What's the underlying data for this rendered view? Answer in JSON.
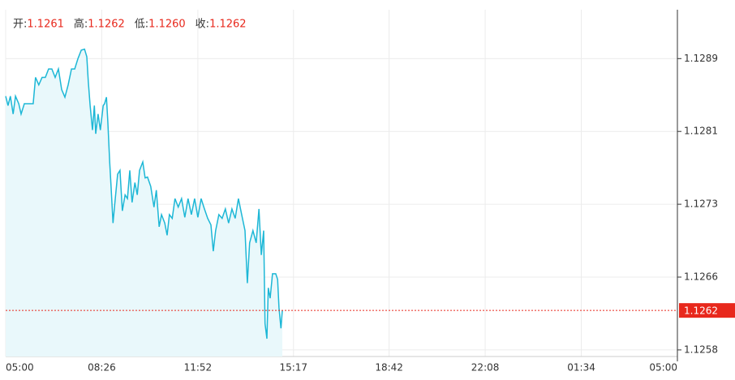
{
  "chart_data": {
    "type": "line",
    "header": [
      {
        "name": "开:",
        "value": 1.1261,
        "value_label": "1.1261"
      },
      {
        "name": "高:",
        "value": 1.1262,
        "value_label": "1.1262"
      },
      {
        "name": "低:",
        "value": 1.126,
        "value_label": "1.1260"
      },
      {
        "name": "收:",
        "value": 1.1262,
        "value_label": "1.1262"
      }
    ],
    "x": [
      0,
      5,
      10,
      16,
      21,
      28,
      33,
      40,
      50,
      59,
      64,
      71,
      78,
      85,
      92,
      99,
      106,
      113,
      120,
      127,
      134,
      141,
      148,
      155,
      162,
      169,
      174,
      177,
      181,
      186,
      190,
      193,
      198,
      203,
      209,
      212,
      216,
      219,
      223,
      226,
      230,
      235,
      240,
      245,
      250,
      256,
      261,
      266,
      271,
      277,
      282,
      287,
      294,
      299,
      304,
      311,
      318,
      323,
      329,
      334,
      341,
      346,
      351,
      357,
      363,
      370,
      377,
      384,
      391,
      398,
      405,
      412,
      419,
      426,
      433,
      440,
      445,
      450,
      457,
      464,
      471,
      478,
      485,
      492,
      499,
      506,
      513,
      518,
      523,
      530,
      537,
      543,
      548,
      553,
      556,
      560,
      563,
      567,
      572,
      579,
      583,
      586,
      590,
      593
    ],
    "series": [
      {
        "color": "#1db7d6",
        "fill": "#e9f8fb",
        "values": [
          1.12848,
          1.12838,
          1.12848,
          1.12829,
          1.12848,
          1.1284,
          1.12829,
          1.1284,
          1.1284,
          1.1284,
          1.12868,
          1.1286,
          1.12868,
          1.12868,
          1.12877,
          1.12877,
          1.12868,
          1.12877,
          1.12855,
          1.12847,
          1.1286,
          1.12877,
          1.12877,
          1.12888,
          1.12897,
          1.12898,
          1.1289,
          1.12864,
          1.12838,
          1.12812,
          1.12838,
          1.12808,
          1.12829,
          1.12812,
          1.12838,
          1.1284,
          1.12847,
          1.12821,
          1.12778,
          1.12752,
          1.12713,
          1.12739,
          1.12765,
          1.12769,
          1.12726,
          1.12743,
          1.12739,
          1.12769,
          1.12735,
          1.12756,
          1.12743,
          1.12769,
          1.12778,
          1.12761,
          1.12762,
          1.12752,
          1.1273,
          1.12748,
          1.12709,
          1.12722,
          1.12713,
          1.127,
          1.12722,
          1.12718,
          1.12739,
          1.1273,
          1.12739,
          1.12719,
          1.12739,
          1.12722,
          1.12739,
          1.12719,
          1.12739,
          1.12728,
          1.12718,
          1.12711,
          1.12683,
          1.12705,
          1.12722,
          1.12718,
          1.12728,
          1.12713,
          1.12728,
          1.12718,
          1.12739,
          1.12722,
          1.12705,
          1.12649,
          1.12692,
          1.12705,
          1.12692,
          1.12728,
          1.12679,
          1.12705,
          1.12606,
          1.1259,
          1.12644,
          1.12633,
          1.12659,
          1.12659,
          1.12653,
          1.12623,
          1.12601,
          1.1262
        ]
      }
    ],
    "current_price": 1.1262,
    "current_price_color": "#e8281c",
    "xlim": [
      0,
      1440
    ],
    "xticks": [
      {
        "value": 0,
        "label": "05:00"
      },
      {
        "value": 206,
        "label": "08:26"
      },
      {
        "value": 412,
        "label": "11:52"
      },
      {
        "value": 617,
        "label": "15:17"
      },
      {
        "value": 822,
        "label": "18:42"
      },
      {
        "value": 1028,
        "label": "22:08"
      },
      {
        "value": 1234,
        "label": "01:34"
      },
      {
        "value": 1440,
        "label": "05:00"
      }
    ],
    "ylim": [
      1.12571,
      1.1294
    ],
    "yticks": [
      {
        "value": 1.12578,
        "label": "1.1258"
      },
      {
        "value": 1.126555,
        "label": "1.1266"
      },
      {
        "value": 1.12733,
        "label": "1.1273"
      },
      {
        "value": 1.128105,
        "label": "1.1281"
      },
      {
        "value": 1.12888,
        "label": "1.1289"
      }
    ],
    "grid": true
  }
}
